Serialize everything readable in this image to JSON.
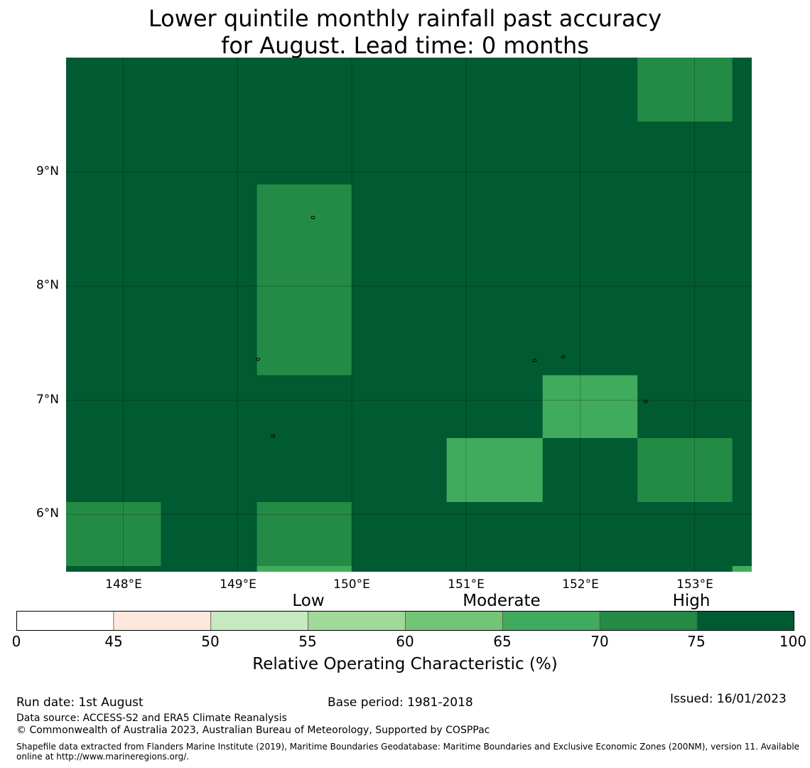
{
  "title": {
    "line1": "Lower quintile monthly rainfall past accuracy",
    "line2": "for August. Lead time: 0 months"
  },
  "map": {
    "lon_range": [
      147.5,
      153.5
    ],
    "lat_range": [
      5.5,
      10.0
    ],
    "lat_labels": [
      "9°N",
      "8°N",
      "7°N",
      "6°N"
    ],
    "lon_labels": [
      "148°E",
      "149°E",
      "150°E",
      "151°E",
      "152°E",
      "153°E"
    ],
    "gridlines": true,
    "background_value_range": "75-100",
    "background_color": "#005a32",
    "cells": [
      {
        "lon": [
          152.5,
          153.33
        ],
        "lat": [
          9.44,
          10.0
        ],
        "range": "70-75",
        "color": "#238b45"
      },
      {
        "lon": [
          149.17,
          150.0
        ],
        "lat": [
          7.22,
          8.89
        ],
        "range": "70-75",
        "color": "#238b45"
      },
      {
        "lon": [
          151.67,
          152.5
        ],
        "lat": [
          6.67,
          7.22
        ],
        "range": "65-70",
        "color": "#41ab5d"
      },
      {
        "lon": [
          150.83,
          151.67
        ],
        "lat": [
          6.11,
          6.67
        ],
        "range": "65-70",
        "color": "#41ab5d"
      },
      {
        "lon": [
          152.5,
          153.33
        ],
        "lat": [
          6.11,
          6.67
        ],
        "range": "70-75",
        "color": "#238b45"
      },
      {
        "lon": [
          147.5,
          148.33
        ],
        "lat": [
          5.55,
          6.11
        ],
        "range": "70-75",
        "color": "#238b45"
      },
      {
        "lon": [
          149.17,
          150.0
        ],
        "lat": [
          5.55,
          6.11
        ],
        "range": "70-75",
        "color": "#238b45"
      },
      {
        "lon": [
          149.17,
          150.0
        ],
        "lat": [
          5.5,
          5.55
        ],
        "range": "65-70",
        "color": "#41ab5d"
      },
      {
        "lon": [
          153.33,
          153.5
        ],
        "lat": [
          5.5,
          5.55
        ],
        "range": "65-70",
        "color": "#41ab5d"
      }
    ],
    "islands": [
      {
        "lon": 149.66,
        "lat": 8.6
      },
      {
        "lon": 149.18,
        "lat": 7.36
      },
      {
        "lon": 149.31,
        "lat": 6.69
      },
      {
        "lon": 151.6,
        "lat": 7.35
      },
      {
        "lon": 151.85,
        "lat": 7.38
      },
      {
        "lon": 152.57,
        "lat": 6.99
      }
    ]
  },
  "legend": {
    "categories": {
      "low": "Low",
      "moderate": "Moderate",
      "high": "High"
    },
    "ticks": [
      "0",
      "45",
      "50",
      "55",
      "60",
      "65",
      "70",
      "75",
      "100"
    ],
    "colors": [
      "#ffffff",
      "#fee8de",
      "#c7e9c0",
      "#a1d99b",
      "#74c476",
      "#41ab5d",
      "#238b45",
      "#005a32"
    ],
    "label": "Relative Operating Characteristic (%)"
  },
  "footer": {
    "run_date": "Run date: 1st August",
    "base_period": "Base period: 1981-2018",
    "issued": "Issued: 16/01/2023",
    "data_source": "Data source: ACCESS-S2 and ERA5 Climate Reanalysis",
    "copyright": "© Commonwealth of Australia 2023, Australian Bureau of Meteorology, Supported by COSPPac",
    "shapefile": "Shapefile data extracted from Flanders Marine Institute (2019), Maritime Boundaries Geodatabase: Maritime Boundaries and Exclusive Economic Zones (200NM), version 11. Available online at http://www.marineregions.org/."
  }
}
